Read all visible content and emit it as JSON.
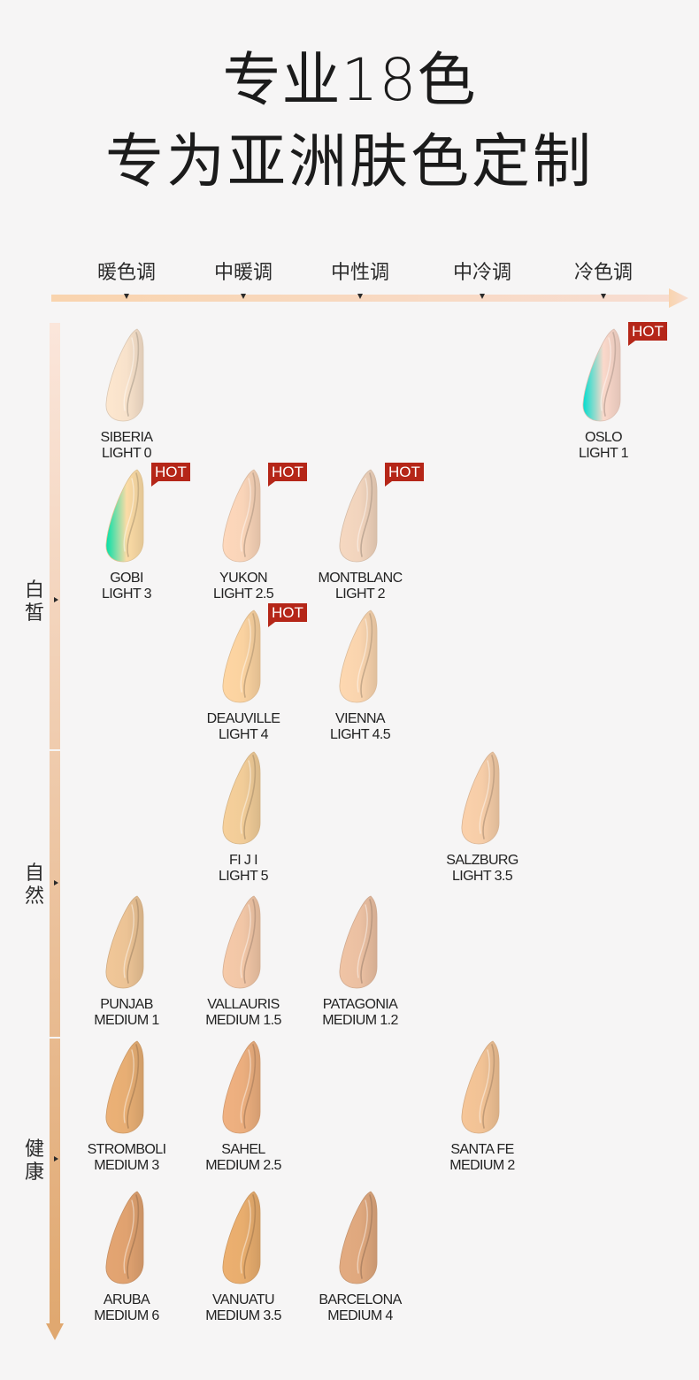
{
  "title_line1": "专业18色",
  "title_line2": "专为亚洲肤色定制",
  "tones": [
    "暖色调",
    "中暖调",
    "中性调",
    "中冷调",
    "冷色调"
  ],
  "groups": [
    {
      "chars": [
        "白",
        "皙"
      ]
    },
    {
      "chars": [
        "自",
        "然"
      ]
    },
    {
      "chars": [
        "健",
        "康"
      ]
    }
  ],
  "hot_label": "HOT",
  "colors": {
    "hot_badge": "#b52618",
    "axis_start": "#f9d4ae",
    "axis_end": "#f7ddd2",
    "vertical_start": "#fbe6db",
    "vertical_end": "#e0a870"
  },
  "shades": [
    {
      "name": "SIBERIA",
      "code": "LIGHT 0",
      "tone": 0,
      "row": 0,
      "hot": false,
      "color": "#f8e2cb"
    },
    {
      "name": "OSLO",
      "code": "LIGHT 1",
      "tone": 4,
      "row": 0,
      "hot": true,
      "color": "#fbd9cb"
    },
    {
      "name": "GOBI",
      "code": "LIGHT 3",
      "tone": 0,
      "row": 1,
      "hot": true,
      "color": "#fcdca6"
    },
    {
      "name": "YUKON",
      "code": "LIGHT 2.5",
      "tone": 1,
      "row": 1,
      "hot": true,
      "color": "#f9d4b8"
    },
    {
      "name": "MONTBLANC",
      "code": "LIGHT 2",
      "tone": 2,
      "row": 1,
      "hot": true,
      "color": "#f1d4bd"
    },
    {
      "name": "DEAUVILLE",
      "code": "LIGHT 4",
      "tone": 1,
      "row": 2,
      "hot": true,
      "color": "#fad2a0"
    },
    {
      "name": "VIENNA",
      "code": "LIGHT 4.5",
      "tone": 2,
      "row": 2,
      "hot": false,
      "color": "#f9d4ae"
    },
    {
      "name": "FI J I",
      "code": "LIGHT 5",
      "tone": 1,
      "row": 3,
      "hot": false,
      "color": "#f1cc98"
    },
    {
      "name": "SALZBURG",
      "code": "LIGHT 3.5",
      "tone": 3,
      "row": 3,
      "hot": false,
      "color": "#f6cda8"
    },
    {
      "name": "PUNJAB",
      "code": "MEDIUM 1",
      "tone": 0,
      "row": 4,
      "hot": false,
      "color": "#ecc395"
    },
    {
      "name": "VALLAURIS",
      "code": "MEDIUM 1.5",
      "tone": 1,
      "row": 4,
      "hot": false,
      "color": "#f1c6a6"
    },
    {
      "name": "PATAGONIA",
      "code": "MEDIUM 1.2",
      "tone": 2,
      "row": 4,
      "hot": false,
      "color": "#ebc0a2"
    },
    {
      "name": "STROMBOLI",
      "code": "MEDIUM 3",
      "tone": 0,
      "row": 5,
      "hot": false,
      "color": "#e7ae74"
    },
    {
      "name": "SAHEL",
      "code": "MEDIUM 2.5",
      "tone": 1,
      "row": 5,
      "hot": false,
      "color": "#ebae7e"
    },
    {
      "name": "SANTA FE",
      "code": "MEDIUM 2",
      "tone": 3,
      "row": 5,
      "hot": false,
      "color": "#f1c295"
    },
    {
      "name": "ARUBA",
      "code": "MEDIUM 6",
      "tone": 0,
      "row": 6,
      "hot": false,
      "color": "#e0a270"
    },
    {
      "name": "VANUATU",
      "code": "MEDIUM 3.5",
      "tone": 1,
      "row": 6,
      "hot": false,
      "color": "#e8ad6e"
    },
    {
      "name": "BARCELONA",
      "code": "MEDIUM 4",
      "tone": 2,
      "row": 6,
      "hot": false,
      "color": "#dfa87e"
    }
  ]
}
